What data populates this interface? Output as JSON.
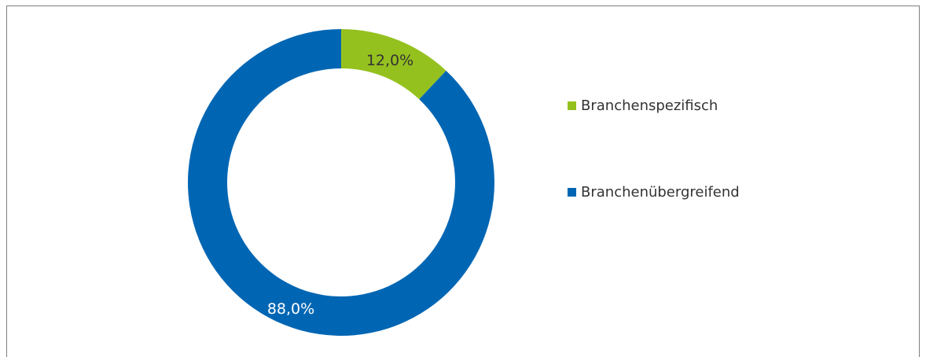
{
  "chart_data": {
    "type": "pie",
    "donut": true,
    "categories": [
      "Branchenspezifisch",
      "Branchenübergreifend"
    ],
    "values": [
      12.0,
      88.0
    ],
    "labels": [
      "12,0%",
      "88,0%"
    ],
    "colors": [
      "#95c11f",
      "#0066b3"
    ],
    "legend_placement": "right"
  }
}
